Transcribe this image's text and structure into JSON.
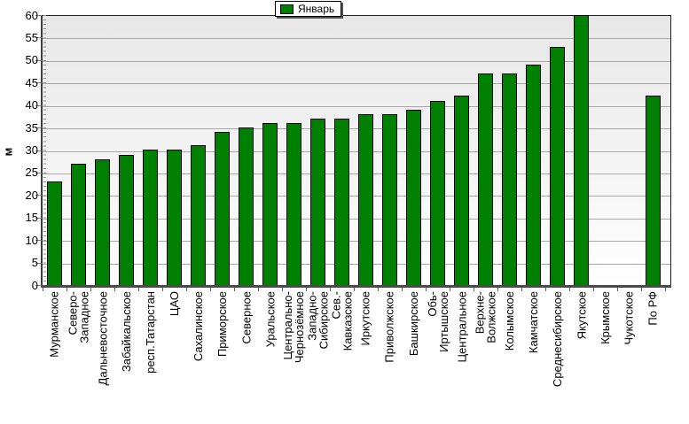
{
  "legend": {
    "label": "Январь",
    "swatch_color": "#008000",
    "position": "top"
  },
  "y_axis": {
    "title": "м",
    "ticks": [
      "0",
      "5",
      "10",
      "15",
      "20",
      "25",
      "30",
      "35",
      "40",
      "45",
      "50",
      "55",
      "60"
    ]
  },
  "chart_data": {
    "type": "bar",
    "title": "",
    "xlabel": "",
    "ylabel": "м",
    "ylim": [
      0,
      60
    ],
    "ytick_step": 5,
    "grid": "horizontal",
    "legend_position": "top",
    "series": [
      {
        "name": "Январь",
        "values": [
          23,
          27,
          28,
          29,
          30,
          30,
          31,
          34,
          35,
          36,
          36,
          37,
          37,
          38,
          38,
          39,
          41,
          42,
          47,
          47,
          49,
          53,
          60,
          null,
          null,
          42
        ]
      }
    ],
    "categories": [
      "Мурманское",
      "Северо-Западное",
      "Дальневосточное",
      "Забайкальское",
      "респ.Татарстан",
      "ЦАО",
      "Сахалинское",
      "Приморское",
      "Северное",
      "Уральское",
      "Центрально-Чернозёмное",
      "Западно-Сибирское",
      "Сев.-Кавказское",
      "Иркутское",
      "Приволжское",
      "Башкирское",
      "Обь-Иртышское",
      "Центральное",
      "Верхне-Волжское",
      "Колымское",
      "Камчатское",
      "Среднесибирское",
      "Якутское",
      "Крымское",
      "Чукотское",
      "По РФ"
    ],
    "category_label_lines": [
      [
        "Мурманское"
      ],
      [
        "Северо-",
        "Западное"
      ],
      [
        "Дальневосточное"
      ],
      [
        "Забайкальское"
      ],
      [
        "респ.Татарстан"
      ],
      [
        "ЦАО"
      ],
      [
        "Сахалинское"
      ],
      [
        "Приморское"
      ],
      [
        "Северное"
      ],
      [
        "Уральское"
      ],
      [
        "Центрально-",
        "Чернозёмное"
      ],
      [
        "Западно-",
        "Сибирское"
      ],
      [
        "Сев.-",
        "Кавказское"
      ],
      [
        "Иркутское"
      ],
      [
        "Приволжское"
      ],
      [
        "Башкирское"
      ],
      [
        "Обь-",
        "Иртышское"
      ],
      [
        "Центральное"
      ],
      [
        "Верхне-",
        "Волжское"
      ],
      [
        "Колымское"
      ],
      [
        "Камчатское"
      ],
      [
        "Среднесибирское"
      ],
      [
        "Якутское"
      ],
      [
        "Крымское"
      ],
      [
        "Чукотское"
      ],
      [
        "По РФ"
      ]
    ],
    "categories_without_bars": [
      "Крымское",
      "Чукотское"
    ]
  },
  "style": {
    "bar_fill": "#008000",
    "bar_border": "#000000",
    "plot_bg_top": "#e7e7e7",
    "plot_bg_bottom": "#ffffff",
    "gridline": "#a8a8a8",
    "axis_color": "#4a4a4a",
    "plot_border": "#1f1f1f"
  }
}
